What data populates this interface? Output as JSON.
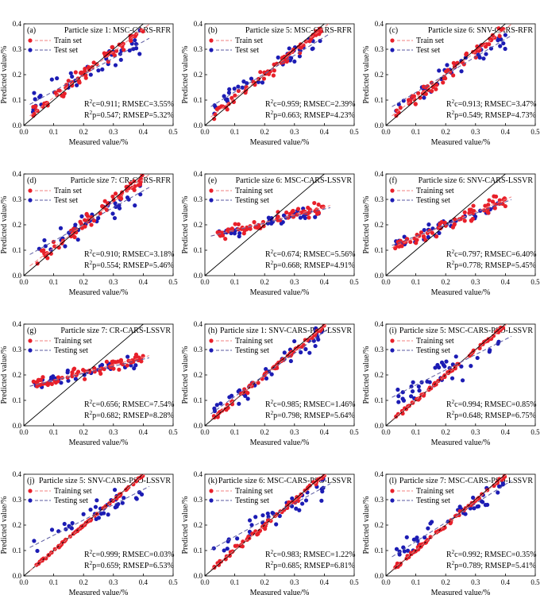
{
  "figure": {
    "axis_labels": {
      "xlabel": "Measured value/%",
      "ylabel": "Predicted value/%"
    },
    "colors": {
      "train": "#e8202a",
      "test": "#1c1cb4",
      "ideal_line": "#000000",
      "train_fit": "#f08080",
      "test_fit": "#5a5aa0"
    }
  },
  "chart_data": [
    {
      "panel": "(a)",
      "type": "scatter",
      "title": "Particle size 1:  MSC-CARS-RFR",
      "legend": [
        "Train set",
        "Test set"
      ],
      "xlim": [
        0,
        0.5
      ],
      "ylim": [
        0,
        0.4
      ],
      "xticks": [
        "0.0",
        "0.1",
        "0.2",
        "0.3",
        "0.4",
        "0.5"
      ],
      "yticks": [
        "0.0",
        "0.1",
        "0.2",
        "0.3",
        "0.4"
      ],
      "metrics": [
        "R²c=0.911;  RMSEC=3.55%",
        "R²p=0.547;  RMSEP=5.32%"
      ],
      "train_slope": 0.9,
      "train_intercept": 0.02,
      "test_slope": 0.65,
      "test_intercept": 0.07,
      "train_spread": 0.03,
      "test_spread": 0.05
    },
    {
      "panel": "(b)",
      "type": "scatter",
      "title": "Particle size 5:  MSC-CARS-RFR",
      "legend": [
        "Train set",
        "Test set"
      ],
      "xlim": [
        0,
        0.5
      ],
      "ylim": [
        0,
        0.4
      ],
      "xticks": [
        "0.0",
        "0.1",
        "0.2",
        "0.3",
        "0.4",
        "0.5"
      ],
      "yticks": [
        "0.0",
        "0.1",
        "0.2",
        "0.3",
        "0.4"
      ],
      "metrics": [
        "R²c=0.959;  RMSEC=2.39%",
        "R²p=0.663;  RMSEP=4.23%"
      ],
      "train_slope": 0.93,
      "train_intercept": 0.015,
      "test_slope": 0.72,
      "test_intercept": 0.06,
      "train_spread": 0.022,
      "test_spread": 0.045
    },
    {
      "panel": "(c)",
      "type": "scatter",
      "title": "Particle size 6:  SNV-CARS-RFR",
      "legend": [
        "Train set",
        "Test set"
      ],
      "xlim": [
        0,
        0.5
      ],
      "ylim": [
        0,
        0.4
      ],
      "xticks": [
        "0.0",
        "0.1",
        "0.2",
        "0.3",
        "0.4",
        "0.5"
      ],
      "yticks": [
        "0.0",
        "0.1",
        "0.2",
        "0.3",
        "0.4"
      ],
      "metrics": [
        "R²c=0.913;  RMSEC=3.47%",
        "R²p=0.549;  RMSEP=4.73%"
      ],
      "train_slope": 0.9,
      "train_intercept": 0.02,
      "test_slope": 0.7,
      "test_intercept": 0.06,
      "train_spread": 0.03,
      "test_spread": 0.045
    },
    {
      "panel": "(d)",
      "type": "scatter",
      "title": "Particle size 7:  CR-CARS-RFR",
      "legend": [
        "Train set",
        "Test set"
      ],
      "xlim": [
        0,
        0.5
      ],
      "ylim": [
        0,
        0.4
      ],
      "xticks": [
        "0.0",
        "0.1",
        "0.2",
        "0.3",
        "0.4",
        "0.5"
      ],
      "yticks": [
        "0.0",
        "0.1",
        "0.2",
        "0.3",
        "0.4"
      ],
      "metrics": [
        "R²c=0.910;  RMSEC=3.18%",
        "R²p=0.554;  RMSEP=5.46%"
      ],
      "train_slope": 0.9,
      "train_intercept": 0.02,
      "test_slope": 0.66,
      "test_intercept": 0.07,
      "train_spread": 0.03,
      "test_spread": 0.05
    },
    {
      "panel": "(e)",
      "type": "scatter",
      "title": "Particle size 6:  MSC-CARS-LSSVR",
      "legend": [
        "Training set",
        "Testing set"
      ],
      "xlim": [
        0,
        0.5
      ],
      "ylim": [
        0,
        0.4
      ],
      "xticks": [
        "0.0",
        "0.1",
        "0.2",
        "0.3",
        "0.4",
        "0.5"
      ],
      "yticks": [
        "0.0",
        "0.1",
        "0.2",
        "0.3",
        "0.4"
      ],
      "metrics": [
        "R²c=0.674;  RMSEC=5.56%",
        "R²p=0.668;  RMSEP=4.91%"
      ],
      "train_slope": 0.3,
      "train_intercept": 0.15,
      "test_slope": 0.28,
      "test_intercept": 0.15,
      "train_spread": 0.025,
      "test_spread": 0.03
    },
    {
      "panel": "(f)",
      "type": "scatter",
      "title": "Particle size 6:  SNV-CARS-LSSVR",
      "legend": [
        "Training set",
        "Testing set"
      ],
      "xlim": [
        0,
        0.5
      ],
      "ylim": [
        0,
        0.4
      ],
      "xticks": [
        "0.0",
        "0.1",
        "0.2",
        "0.3",
        "0.4",
        "0.5"
      ],
      "yticks": [
        "0.0",
        "0.1",
        "0.2",
        "0.3",
        "0.4"
      ],
      "metrics": [
        "R²c=0.797;  RMSEC=6.40%",
        "R²p=0.778;  RMSEP=5.45%"
      ],
      "train_slope": 0.5,
      "train_intercept": 0.1,
      "test_slope": 0.45,
      "test_intercept": 0.11,
      "train_spread": 0.025,
      "test_spread": 0.03
    },
    {
      "panel": "(g)",
      "type": "scatter",
      "title": "Particle size 7:  CR-CARS-LSSVR",
      "legend": [
        "Training set",
        "Testing set"
      ],
      "xlim": [
        0,
        0.5
      ],
      "ylim": [
        0,
        0.4
      ],
      "xticks": [
        "0.0",
        "0.1",
        "0.2",
        "0.3",
        "0.4",
        "0.5"
      ],
      "yticks": [
        "0.0",
        "0.1",
        "0.2",
        "0.3",
        "0.4"
      ],
      "metrics": [
        "R²c=0.656;  RMSEC=7.54%",
        "R²p=0.682;  RMSEP=8.28%"
      ],
      "train_slope": 0.3,
      "train_intercept": 0.15,
      "test_slope": 0.28,
      "test_intercept": 0.15,
      "train_spread": 0.025,
      "test_spread": 0.03
    },
    {
      "panel": "(h)",
      "type": "scatter",
      "title": "Particle size 1:  SNV-CARS-PSO-LSSVR",
      "legend": [
        "Training set",
        "Testing set"
      ],
      "xlim": [
        0,
        0.5
      ],
      "ylim": [
        0,
        0.4
      ],
      "xticks": [
        "0.0",
        "0.1",
        "0.2",
        "0.3",
        "0.4",
        "0.5"
      ],
      "yticks": [
        "0.0",
        "0.1",
        "0.2",
        "0.3",
        "0.4"
      ],
      "metrics": [
        "R²c=0.985;  RMSEC=1.46%",
        "R²p=0.798;  RMSEP=5.64%"
      ],
      "train_slope": 0.97,
      "train_intercept": 0.005,
      "test_slope": 0.85,
      "test_intercept": 0.03,
      "train_spread": 0.012,
      "test_spread": 0.045
    },
    {
      "panel": "(i)",
      "type": "scatter",
      "title": "Particle size 5:  MSC-CARS-PSO-LSSVR",
      "legend": [
        "Training set",
        "Testing set"
      ],
      "xlim": [
        0,
        0.5
      ],
      "ylim": [
        0,
        0.4
      ],
      "xticks": [
        "0.0",
        "0.1",
        "0.2",
        "0.3",
        "0.4",
        "0.5"
      ],
      "yticks": [
        "0.0",
        "0.1",
        "0.2",
        "0.3",
        "0.4"
      ],
      "metrics": [
        "R²c=0.994;  RMSEC=0.85%",
        "R²p=0.648;  RMSEP=6.75%"
      ],
      "train_slope": 0.98,
      "train_intercept": 0.003,
      "test_slope": 0.6,
      "test_intercept": 0.1,
      "train_spread": 0.008,
      "test_spread": 0.05
    },
    {
      "panel": "(j)",
      "type": "scatter",
      "title": "Particle size 5:  SNV-CARS-PSO-LSSVR",
      "legend": [
        "Training set",
        "Testing set"
      ],
      "xlim": [
        0,
        0.5
      ],
      "ylim": [
        0,
        0.4
      ],
      "xticks": [
        "0.0",
        "0.1",
        "0.2",
        "0.3",
        "0.4",
        "0.5"
      ],
      "yticks": [
        "0.0",
        "0.1",
        "0.2",
        "0.3",
        "0.4"
      ],
      "metrics": [
        "R²c=0.999;  RMSEC=0.03%",
        "R²p=0.659;  RMSEP=6.53%"
      ],
      "train_slope": 0.99,
      "train_intercept": 0.001,
      "test_slope": 0.6,
      "test_intercept": 0.1,
      "train_spread": 0.004,
      "test_spread": 0.05
    },
    {
      "panel": "(k)",
      "type": "scatter",
      "title": "Particle size 6:  MSC-CARS-PSO-LSSVR",
      "legend": [
        "Training set",
        "Testing set"
      ],
      "xlim": [
        0,
        0.5
      ],
      "ylim": [
        0,
        0.4
      ],
      "xticks": [
        "0.0",
        "0.1",
        "0.2",
        "0.3",
        "0.4",
        "0.5"
      ],
      "yticks": [
        "0.0",
        "0.1",
        "0.2",
        "0.3",
        "0.4"
      ],
      "metrics": [
        "R²c=0.983;  RMSEC=1.22%",
        "R²p=0.685;  RMSEP=6.81%"
      ],
      "train_slope": 0.97,
      "train_intercept": 0.005,
      "test_slope": 0.65,
      "test_intercept": 0.09,
      "train_spread": 0.012,
      "test_spread": 0.055
    },
    {
      "panel": "(l)",
      "type": "scatter",
      "title": "Particle size 7:  MSC-CARS-PSO-LSSVR",
      "legend": [
        "Training set",
        "Testing set"
      ],
      "xlim": [
        0,
        0.5
      ],
      "ylim": [
        0,
        0.4
      ],
      "xticks": [
        "0.0",
        "0.1",
        "0.2",
        "0.3",
        "0.4",
        "0.5"
      ],
      "yticks": [
        "0.0",
        "0.1",
        "0.2",
        "0.3",
        "0.4"
      ],
      "metrics": [
        "R²c=0.992;  RMSEC=0.35%",
        "R²p=0.789;  RMSEP=5.41%"
      ],
      "train_slope": 0.98,
      "train_intercept": 0.003,
      "test_slope": 0.75,
      "test_intercept": 0.06,
      "train_spread": 0.008,
      "test_spread": 0.045
    }
  ]
}
